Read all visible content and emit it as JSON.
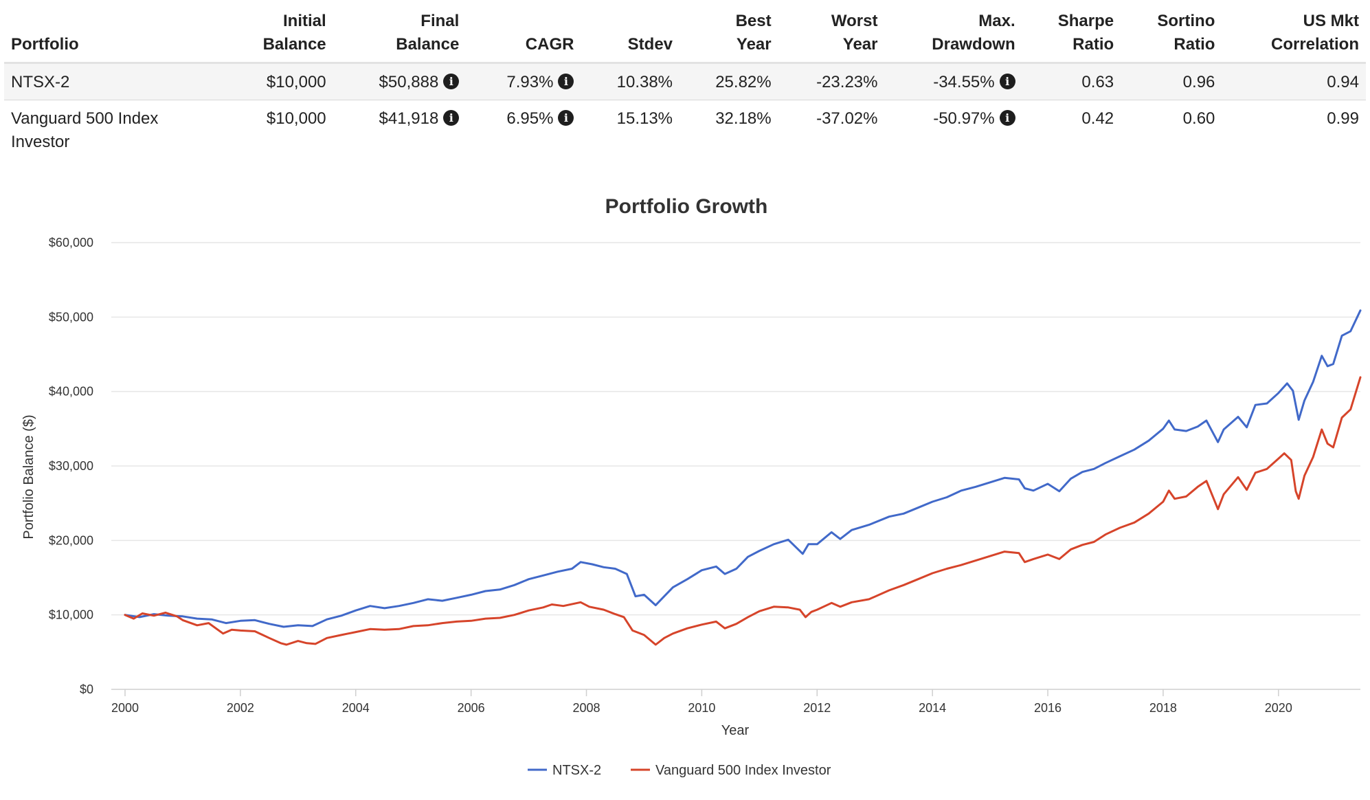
{
  "table": {
    "headers": [
      {
        "line1": "",
        "line2": "Portfolio"
      },
      {
        "line1": "Initial",
        "line2": "Balance"
      },
      {
        "line1": "Final",
        "line2": "Balance"
      },
      {
        "line1": "",
        "line2": "CAGR"
      },
      {
        "line1": "",
        "line2": "Stdev"
      },
      {
        "line1": "Best",
        "line2": "Year"
      },
      {
        "line1": "Worst",
        "line2": "Year"
      },
      {
        "line1": "Max.",
        "line2": "Drawdown"
      },
      {
        "line1": "Sharpe",
        "line2": "Ratio"
      },
      {
        "line1": "Sortino",
        "line2": "Ratio"
      },
      {
        "line1": "US Mkt",
        "line2": "Correlation"
      }
    ],
    "rows": [
      {
        "portfolio": "NTSX-2",
        "initial_balance": "$10,000",
        "final_balance": "$50,888",
        "cagr": "7.93%",
        "stdev": "10.38%",
        "best_year": "25.82%",
        "worst_year": "-23.23%",
        "max_drawdown": "-34.55%",
        "sharpe_ratio": "0.63",
        "sortino_ratio": "0.96",
        "us_mkt_correlation": "0.94"
      },
      {
        "portfolio": "Vanguard 500 Index Investor",
        "initial_balance": "$10,000",
        "final_balance": "$41,918",
        "cagr": "6.95%",
        "stdev": "15.13%",
        "best_year": "32.18%",
        "worst_year": "-37.02%",
        "max_drawdown": "-50.97%",
        "sharpe_ratio": "0.42",
        "sortino_ratio": "0.60",
        "us_mkt_correlation": "0.99"
      }
    ],
    "icons": {
      "info": "info-circle-icon",
      "info_glyph": "i"
    }
  },
  "chart_data": {
    "type": "line",
    "title": "Portfolio Growth",
    "xlabel": "Year",
    "ylabel": "Portfolio Balance ($)",
    "xlim": [
      2000,
      2021.42
    ],
    "ylim": [
      0,
      60000
    ],
    "x_ticks": [
      2000,
      2002,
      2004,
      2006,
      2008,
      2010,
      2012,
      2014,
      2016,
      2018,
      2020
    ],
    "x_tick_labels": [
      "2000",
      "2002",
      "2004",
      "2006",
      "2008",
      "2010",
      "2012",
      "2014",
      "2016",
      "2018",
      "2020"
    ],
    "y_ticks": [
      0,
      10000,
      20000,
      30000,
      40000,
      50000,
      60000
    ],
    "y_tick_labels": [
      "$0",
      "$10,000",
      "$20,000",
      "$30,000",
      "$40,000",
      "$50,000",
      "$60,000"
    ],
    "grid": "horizontal",
    "legend_position": "bottom-center",
    "series": [
      {
        "name": "NTSX-2",
        "color": "#4169c9",
        "points": [
          [
            2000,
            10000
          ],
          [
            2000.25,
            9700
          ],
          [
            2000.5,
            10100
          ],
          [
            2000.75,
            9900
          ],
          [
            2001,
            9800
          ],
          [
            2001.25,
            9500
          ],
          [
            2001.5,
            9400
          ],
          [
            2001.75,
            8900
          ],
          [
            2002,
            9200
          ],
          [
            2002.25,
            9300
          ],
          [
            2002.5,
            8800
          ],
          [
            2002.75,
            8400
          ],
          [
            2003,
            8600
          ],
          [
            2003.25,
            8500
          ],
          [
            2003.5,
            9400
          ],
          [
            2003.75,
            9900
          ],
          [
            2004,
            10600
          ],
          [
            2004.25,
            11200
          ],
          [
            2004.5,
            10900
          ],
          [
            2004.75,
            11200
          ],
          [
            2005,
            11600
          ],
          [
            2005.25,
            12100
          ],
          [
            2005.5,
            11900
          ],
          [
            2005.75,
            12300
          ],
          [
            2006,
            12700
          ],
          [
            2006.25,
            13200
          ],
          [
            2006.5,
            13400
          ],
          [
            2006.75,
            14000
          ],
          [
            2007,
            14800
          ],
          [
            2007.25,
            15300
          ],
          [
            2007.5,
            15800
          ],
          [
            2007.75,
            16200
          ],
          [
            2007.9,
            17100
          ],
          [
            2008.1,
            16800
          ],
          [
            2008.3,
            16400
          ],
          [
            2008.5,
            16200
          ],
          [
            2008.7,
            15500
          ],
          [
            2008.85,
            12500
          ],
          [
            2009,
            12700
          ],
          [
            2009.2,
            11300
          ],
          [
            2009.35,
            12500
          ],
          [
            2009.5,
            13700
          ],
          [
            2009.75,
            14800
          ],
          [
            2010,
            16000
          ],
          [
            2010.25,
            16500
          ],
          [
            2010.4,
            15500
          ],
          [
            2010.6,
            16200
          ],
          [
            2010.8,
            17800
          ],
          [
            2011,
            18600
          ],
          [
            2011.25,
            19500
          ],
          [
            2011.5,
            20100
          ],
          [
            2011.75,
            18200
          ],
          [
            2011.85,
            19500
          ],
          [
            2012,
            19500
          ],
          [
            2012.25,
            21100
          ],
          [
            2012.4,
            20200
          ],
          [
            2012.6,
            21400
          ],
          [
            2012.9,
            22100
          ],
          [
            2013.25,
            23200
          ],
          [
            2013.5,
            23600
          ],
          [
            2013.75,
            24400
          ],
          [
            2014,
            25200
          ],
          [
            2014.25,
            25800
          ],
          [
            2014.5,
            26700
          ],
          [
            2014.75,
            27200
          ],
          [
            2015,
            27800
          ],
          [
            2015.25,
            28400
          ],
          [
            2015.5,
            28200
          ],
          [
            2015.6,
            27000
          ],
          [
            2015.75,
            26700
          ],
          [
            2016,
            27600
          ],
          [
            2016.2,
            26600
          ],
          [
            2016.4,
            28300
          ],
          [
            2016.6,
            29200
          ],
          [
            2016.8,
            29600
          ],
          [
            2017,
            30400
          ],
          [
            2017.25,
            31300
          ],
          [
            2017.5,
            32200
          ],
          [
            2017.75,
            33400
          ],
          [
            2018,
            35000
          ],
          [
            2018.1,
            36100
          ],
          [
            2018.2,
            34900
          ],
          [
            2018.4,
            34700
          ],
          [
            2018.6,
            35300
          ],
          [
            2018.75,
            36100
          ],
          [
            2018.95,
            33200
          ],
          [
            2019.05,
            34900
          ],
          [
            2019.3,
            36600
          ],
          [
            2019.45,
            35200
          ],
          [
            2019.6,
            38200
          ],
          [
            2019.8,
            38400
          ],
          [
            2020,
            39800
          ],
          [
            2020.15,
            41100
          ],
          [
            2020.25,
            40100
          ],
          [
            2020.35,
            36200
          ],
          [
            2020.45,
            38800
          ],
          [
            2020.6,
            41300
          ],
          [
            2020.75,
            44800
          ],
          [
            2020.85,
            43400
          ],
          [
            2020.95,
            43700
          ],
          [
            2021.1,
            47500
          ],
          [
            2021.25,
            48100
          ],
          [
            2021.42,
            50888
          ]
        ]
      },
      {
        "name": "Vanguard 500 Index Investor",
        "color": "#d6442a",
        "points": [
          [
            2000,
            10000
          ],
          [
            2000.15,
            9500
          ],
          [
            2000.3,
            10200
          ],
          [
            2000.5,
            9900
          ],
          [
            2000.7,
            10300
          ],
          [
            2000.9,
            9800
          ],
          [
            2001,
            9300
          ],
          [
            2001.25,
            8600
          ],
          [
            2001.45,
            8900
          ],
          [
            2001.7,
            7500
          ],
          [
            2001.85,
            8000
          ],
          [
            2002,
            7900
          ],
          [
            2002.25,
            7800
          ],
          [
            2002.5,
            6900
          ],
          [
            2002.7,
            6200
          ],
          [
            2002.8,
            6000
          ],
          [
            2003,
            6500
          ],
          [
            2003.15,
            6200
          ],
          [
            2003.3,
            6100
          ],
          [
            2003.5,
            6900
          ],
          [
            2003.75,
            7300
          ],
          [
            2004,
            7700
          ],
          [
            2004.25,
            8100
          ],
          [
            2004.5,
            8000
          ],
          [
            2004.75,
            8100
          ],
          [
            2005,
            8500
          ],
          [
            2005.25,
            8600
          ],
          [
            2005.5,
            8900
          ],
          [
            2005.75,
            9100
          ],
          [
            2006,
            9200
          ],
          [
            2006.25,
            9500
          ],
          [
            2006.5,
            9600
          ],
          [
            2006.75,
            10000
          ],
          [
            2007,
            10600
          ],
          [
            2007.25,
            11000
          ],
          [
            2007.4,
            11400
          ],
          [
            2007.6,
            11200
          ],
          [
            2007.9,
            11700
          ],
          [
            2008.05,
            11100
          ],
          [
            2008.3,
            10700
          ],
          [
            2008.5,
            10100
          ],
          [
            2008.65,
            9700
          ],
          [
            2008.8,
            7900
          ],
          [
            2009,
            7300
          ],
          [
            2009.2,
            6000
          ],
          [
            2009.35,
            6900
          ],
          [
            2009.5,
            7500
          ],
          [
            2009.75,
            8200
          ],
          [
            2010,
            8700
          ],
          [
            2010.25,
            9100
          ],
          [
            2010.4,
            8200
          ],
          [
            2010.6,
            8800
          ],
          [
            2010.8,
            9700
          ],
          [
            2011,
            10500
          ],
          [
            2011.25,
            11100
          ],
          [
            2011.5,
            11000
          ],
          [
            2011.7,
            10700
          ],
          [
            2011.8,
            9700
          ],
          [
            2011.9,
            10400
          ],
          [
            2012,
            10700
          ],
          [
            2012.25,
            11600
          ],
          [
            2012.4,
            11100
          ],
          [
            2012.6,
            11700
          ],
          [
            2012.9,
            12100
          ],
          [
            2013.25,
            13300
          ],
          [
            2013.5,
            14000
          ],
          [
            2013.75,
            14800
          ],
          [
            2014,
            15600
          ],
          [
            2014.25,
            16200
          ],
          [
            2014.5,
            16700
          ],
          [
            2014.75,
            17300
          ],
          [
            2015,
            17900
          ],
          [
            2015.25,
            18500
          ],
          [
            2015.5,
            18300
          ],
          [
            2015.6,
            17100
          ],
          [
            2015.75,
            17500
          ],
          [
            2016,
            18100
          ],
          [
            2016.2,
            17500
          ],
          [
            2016.4,
            18800
          ],
          [
            2016.6,
            19400
          ],
          [
            2016.8,
            19800
          ],
          [
            2017,
            20800
          ],
          [
            2017.25,
            21700
          ],
          [
            2017.5,
            22400
          ],
          [
            2017.75,
            23600
          ],
          [
            2018,
            25200
          ],
          [
            2018.1,
            26700
          ],
          [
            2018.2,
            25600
          ],
          [
            2018.4,
            25900
          ],
          [
            2018.6,
            27200
          ],
          [
            2018.75,
            28000
          ],
          [
            2018.95,
            24200
          ],
          [
            2019.05,
            26200
          ],
          [
            2019.3,
            28500
          ],
          [
            2019.45,
            26800
          ],
          [
            2019.6,
            29100
          ],
          [
            2019.8,
            29600
          ],
          [
            2020,
            31000
          ],
          [
            2020.1,
            31700
          ],
          [
            2020.22,
            30800
          ],
          [
            2020.3,
            26600
          ],
          [
            2020.35,
            25600
          ],
          [
            2020.45,
            28700
          ],
          [
            2020.6,
            31200
          ],
          [
            2020.75,
            34900
          ],
          [
            2020.85,
            33000
          ],
          [
            2020.95,
            32500
          ],
          [
            2021.1,
            36500
          ],
          [
            2021.25,
            37600
          ],
          [
            2021.42,
            41918
          ]
        ]
      }
    ]
  }
}
